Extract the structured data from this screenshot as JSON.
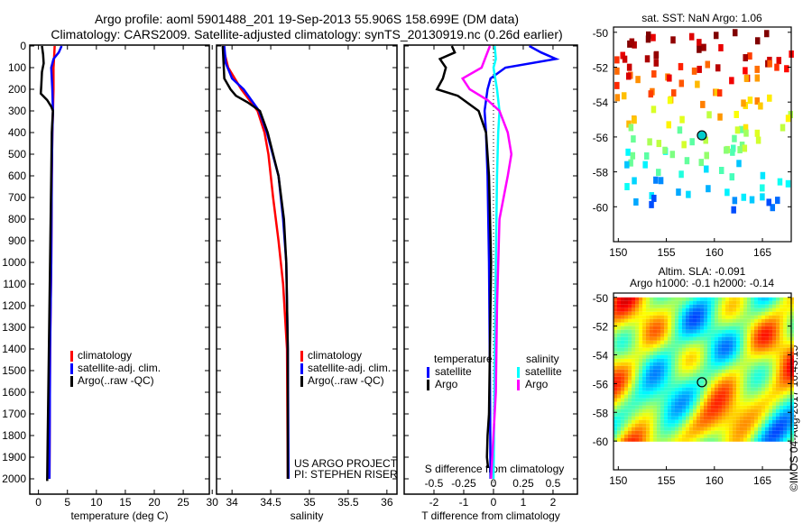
{
  "chart_data": [
    {
      "type": "line",
      "title": [
        "Argo profile: aoml 5901488_201 19-Sep-2013 55.906S 158.699E (DM data)",
        "Climatology: CARS2009. Satellite-adjusted climatology: synTS_20130919.nc (0.26d earlier)"
      ],
      "xlabel": "temperature (deg C)",
      "xlim": [
        -1.5,
        29.5
      ],
      "xticks": [
        0,
        5,
        10,
        15,
        20,
        25,
        30
      ],
      "ylim": [
        2070,
        0
      ],
      "yticks": [
        0,
        100,
        200,
        300,
        400,
        500,
        600,
        700,
        800,
        900,
        1000,
        1100,
        1200,
        1300,
        1400,
        1500,
        1600,
        1700,
        1800,
        1900,
        2000
      ],
      "legend": [
        "climatology",
        "satellite-adj. clim.",
        "Argo(..raw -QC)"
      ],
      "series": [
        {
          "name": "climatology",
          "color": "#ff0000",
          "depth": [
            0,
            50,
            100,
            200,
            300,
            400,
            600,
            1000,
            1400,
            2000
          ],
          "values": [
            2.8,
            2.7,
            2.6,
            2.6,
            2.5,
            2.4,
            2.3,
            2.2,
            2.0,
            1.9
          ]
        },
        {
          "name": "satellite-adj. clim.",
          "color": "#0000ff",
          "depth": [
            0,
            30,
            60,
            100,
            150,
            200,
            300,
            400,
            600,
            1000,
            1400,
            2000
          ],
          "values": [
            4.0,
            3.5,
            2.6,
            2.2,
            2.3,
            2.4,
            2.5,
            2.4,
            2.3,
            2.2,
            2.0,
            1.9
          ]
        },
        {
          "name": "Argo(..raw -QC)",
          "color": "#000000",
          "depth": [
            0,
            40,
            80,
            120,
            180,
            220,
            250,
            280,
            300,
            350,
            400,
            600,
            1000,
            1400,
            1800,
            2010
          ],
          "values": [
            0.6,
            0.8,
            0.9,
            0.6,
            0.5,
            0.4,
            1.5,
            2.2,
            2.5,
            2.4,
            2.3,
            2.2,
            2.0,
            1.8,
            1.6,
            1.5
          ]
        }
      ]
    },
    {
      "type": "line",
      "xlabel": "salinity",
      "xlim": [
        33.8,
        36.13
      ],
      "xticks": [
        34,
        34.5,
        35,
        35.5,
        36
      ],
      "ylim": [
        2070,
        0
      ],
      "legend": [
        "climatology",
        "satellite-adj. clim.",
        "Argo(..raw -QC)"
      ],
      "annotation": [
        "US ARGO PROJECT",
        "PI: STEPHEN RISER"
      ],
      "series": [
        {
          "name": "climatology",
          "color": "#ff0000",
          "depth": [
            0,
            100,
            200,
            300,
            400,
            500,
            700,
            900,
            1100,
            1400,
            2000
          ],
          "values": [
            33.88,
            33.95,
            34.12,
            34.33,
            34.42,
            34.47,
            34.53,
            34.6,
            34.66,
            34.71,
            34.72
          ]
        },
        {
          "name": "satellite-adj. clim.",
          "color": "#0000ff",
          "depth": [
            0,
            80,
            150,
            200,
            300,
            400,
            600,
            800,
            1000,
            1400,
            2000
          ],
          "values": [
            33.9,
            33.92,
            34.0,
            34.15,
            34.35,
            34.45,
            34.6,
            34.66,
            34.7,
            34.72,
            34.73
          ]
        },
        {
          "name": "Argo(..raw -QC)",
          "color": "#000000",
          "depth": [
            0,
            150,
            200,
            230,
            260,
            300,
            400,
            600,
            800,
            1000,
            1400,
            2000
          ],
          "values": [
            33.88,
            33.9,
            33.98,
            34.05,
            34.2,
            34.36,
            34.46,
            34.6,
            34.67,
            34.7,
            34.72,
            34.72
          ]
        }
      ]
    },
    {
      "type": "line",
      "xlabel": "T difference from climatology",
      "xlabel2": "S difference from climatology",
      "xlim": [
        -3,
        2.82
      ],
      "xticks": [
        -2,
        -1,
        0,
        1,
        2
      ],
      "s_xticks": [
        -0.5,
        -0.25,
        0,
        0.25,
        0.5
      ],
      "s_per_t": 0.25,
      "ylim": [
        2070,
        0
      ],
      "legend": {
        "temperature": "temperature",
        "salinity": "salinity",
        "t_sat": "satellite",
        "t_argo": "Argo",
        "s_sat": "satellite",
        "s_argo": "Argo"
      },
      "series": [
        {
          "name": "temperature satellite",
          "unit": "T",
          "color": "#0000ff",
          "depth": [
            0,
            30,
            60,
            100,
            150,
            200,
            300,
            400,
            600,
            1000,
            1500,
            2000
          ],
          "values": [
            1.2,
            1.6,
            2.1,
            0.4,
            -0.1,
            -0.2,
            -0.3,
            -0.25,
            -0.2,
            -0.15,
            -0.12,
            -0.1
          ]
        },
        {
          "name": "temperature Argo",
          "unit": "T",
          "color": "#000000",
          "depth": [
            0,
            30,
            60,
            100,
            150,
            200,
            230,
            260,
            300,
            400,
            600,
            1000,
            1400,
            1700,
            1800,
            1900,
            1950
          ],
          "values": [
            -1.4,
            -1.3,
            -1.8,
            -1.6,
            -1.7,
            -1.9,
            -1.2,
            -0.9,
            -0.5,
            -0.25,
            -0.15,
            -0.08,
            -0.12,
            -0.15,
            -0.2,
            -0.22,
            -0.18
          ]
        },
        {
          "name": "salinity satellite",
          "unit": "S",
          "color": "#00ffff",
          "depth": [
            0,
            60,
            100,
            200,
            300,
            400,
            600,
            1000,
            1500,
            2000
          ],
          "values": [
            0.01,
            0.02,
            0.0,
            0.03,
            0.05,
            0.04,
            0.03,
            0.02,
            0.01,
            0.0
          ]
        },
        {
          "name": "salinity Argo",
          "unit": "S",
          "color": "#ff00ff",
          "depth": [
            0,
            100,
            150,
            200,
            250,
            300,
            400,
            500,
            600,
            800,
            1200,
            1600,
            2000
          ],
          "values": [
            -0.03,
            -0.1,
            -0.26,
            -0.2,
            -0.05,
            0.05,
            0.12,
            0.15,
            0.12,
            0.05,
            0.03,
            0.02,
            -0.02
          ]
        }
      ]
    },
    {
      "type": "heatmap",
      "title": "sat. SST: NaN Argo: 1.06",
      "xlim": [
        149.5,
        168
      ],
      "ylim": [
        -62,
        -49.7
      ],
      "xticks": [
        150,
        155,
        160,
        165
      ],
      "yticks": [
        -50,
        -52,
        -54,
        -56,
        -58,
        -60
      ],
      "argo_position": [
        158.699,
        -55.906
      ]
    },
    {
      "type": "heatmap",
      "title": [
        "Altim. SLA: -0.091",
        "Argo h1000: -0.1 h2000: -0.14"
      ],
      "xlim": [
        149.5,
        168
      ],
      "ylim": [
        -62,
        -49.7
      ],
      "xticks": [
        150,
        155,
        160,
        165
      ],
      "yticks": [
        -50,
        -52,
        -54,
        -56,
        -58,
        -60
      ],
      "argo_position": [
        158.699,
        -55.906
      ]
    }
  ],
  "footer": "©IMOS 04-Aug-2017 16:43:15"
}
